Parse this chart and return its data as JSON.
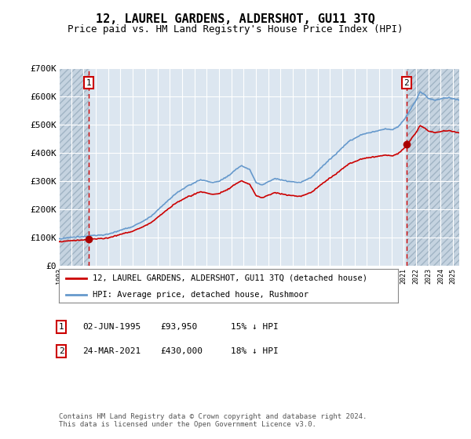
{
  "title": "12, LAUREL GARDENS, ALDERSHOT, GU11 3TQ",
  "subtitle": "Price paid vs. HM Land Registry's House Price Index (HPI)",
  "ylim": [
    0,
    700000
  ],
  "yticks": [
    0,
    100000,
    200000,
    300000,
    400000,
    500000,
    600000,
    700000
  ],
  "ytick_labels": [
    "£0",
    "£100K",
    "£200K",
    "£300K",
    "£400K",
    "£500K",
    "£600K",
    "£700K"
  ],
  "xlim_start": 1993.0,
  "xlim_end": 2025.5,
  "hpi_color": "#6699cc",
  "price_color": "#cc0000",
  "marker_color": "#aa0000",
  "transaction1_date": 1995.42,
  "transaction1_price": 93950,
  "transaction2_date": 2021.23,
  "transaction2_price": 430000,
  "legend_label1": "12, LAUREL GARDENS, ALDERSHOT, GU11 3TQ (detached house)",
  "legend_label2": "HPI: Average price, detached house, Rushmoor",
  "table_row1_date": "02-JUN-1995",
  "table_row1_price": "£93,950",
  "table_row1_hpi": "15% ↓ HPI",
  "table_row2_date": "24-MAR-2021",
  "table_row2_price": "£430,000",
  "table_row2_hpi": "18% ↓ HPI",
  "footnote": "Contains HM Land Registry data © Crown copyright and database right 2024.\nThis data is licensed under the Open Government Licence v3.0.",
  "bg_color": "#ffffff",
  "plot_bg_color": "#dce6f0",
  "hatch_bg_color": "#c5d3e0",
  "grid_color": "#ffffff",
  "title_fontsize": 11,
  "subtitle_fontsize": 9
}
